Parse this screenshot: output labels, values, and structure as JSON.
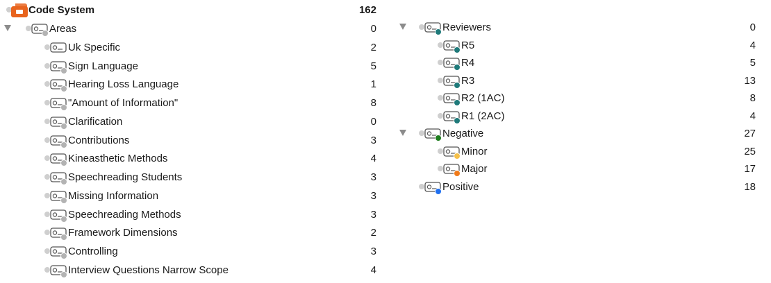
{
  "left": {
    "root": {
      "label": "Code System",
      "count": "162"
    },
    "items": [
      {
        "label": "Areas",
        "count": "0",
        "expanded": true,
        "color": "#b3b3b3",
        "level": 1
      },
      {
        "label": "Uk Specific",
        "count": "2",
        "color": null,
        "level": 2
      },
      {
        "label": "Sign Language",
        "count": "5",
        "color": "#b3b3b3",
        "level": 2
      },
      {
        "label": "Hearing Loss Language",
        "count": "1",
        "color": "#b3b3b3",
        "level": 2
      },
      {
        "label": "\"Amount of Information\"",
        "count": "8",
        "color": "#b3b3b3",
        "level": 2
      },
      {
        "label": "Clarification",
        "count": "0",
        "color": "#b3b3b3",
        "level": 2
      },
      {
        "label": "Contributions",
        "count": "3",
        "color": "#b3b3b3",
        "level": 2
      },
      {
        "label": "Kineasthetic Methods",
        "count": "4",
        "color": "#b3b3b3",
        "level": 2
      },
      {
        "label": "Speechreading Students",
        "count": "3",
        "color": "#b3b3b3",
        "level": 2
      },
      {
        "label": "Missing Information",
        "count": "3",
        "color": "#b3b3b3",
        "level": 2
      },
      {
        "label": "Speechreading Methods",
        "count": "3",
        "color": "#b3b3b3",
        "level": 2
      },
      {
        "label": "Framework Dimensions",
        "count": "2",
        "color": "#b3b3b3",
        "level": 2
      },
      {
        "label": "Controlling",
        "count": "3",
        "color": "#b3b3b3",
        "level": 2
      },
      {
        "label": "Interview Questions Narrow Scope",
        "count": "4",
        "color": "#b3b3b3",
        "level": 2
      }
    ]
  },
  "right": {
    "items": [
      {
        "label": "Reviewers",
        "count": "0",
        "expanded": true,
        "color": "#1f7a7a",
        "level": 1
      },
      {
        "label": "R5",
        "count": "4",
        "color": "#1f7a7a",
        "level": 2
      },
      {
        "label": "R4",
        "count": "5",
        "color": "#1f7a7a",
        "level": 2
      },
      {
        "label": "R3",
        "count": "13",
        "color": "#1f7a7a",
        "level": 2
      },
      {
        "label": "R2 (1AC)",
        "count": "8",
        "color": "#1f7a7a",
        "level": 2
      },
      {
        "label": "R1 (2AC)",
        "count": "4",
        "color": "#1f7a7a",
        "level": 2
      },
      {
        "label": "Negative",
        "count": "27",
        "expanded": true,
        "color": "#1e7d1e",
        "level": 1
      },
      {
        "label": "Minor",
        "count": "25",
        "color": "#f5c04a",
        "level": 2
      },
      {
        "label": "Major",
        "count": "17",
        "color": "#f07a1a",
        "level": 2
      },
      {
        "label": "Positive",
        "count": "18",
        "color": "#1f6ff0",
        "level": 1,
        "noToggle": true
      }
    ]
  },
  "colors": {
    "root_icon": "#e8641e",
    "status_dot": "#cfcfcf",
    "disclosure": "#8c8c8c"
  },
  "icons": {
    "code": "code-tag-icon",
    "root": "code-system-icon",
    "toggle": "disclosure-triangle-icon"
  }
}
